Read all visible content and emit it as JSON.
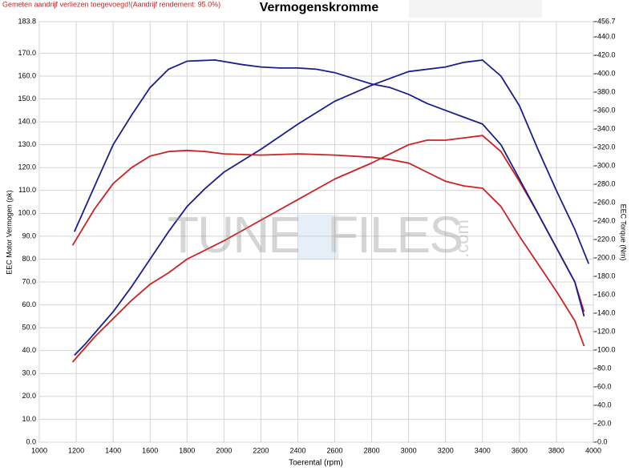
{
  "chart_data": {
    "type": "line",
    "title": "Vermogenskromme",
    "note": "Gemeten aandrijf verliezen toegevoegd!(Aandrijf rendement: 95.0%)",
    "x_label": "Toerental (rpm)",
    "y_label": "EEC Motor Vermogen (pk)",
    "y2_label": "EEC Torque (Nm)",
    "watermark": {
      "left": "TUNE",
      "right": "FILES",
      "suffix": ".com"
    },
    "grid": true,
    "xlim": [
      1000,
      4000
    ],
    "xticks": [
      1000,
      1200,
      1400,
      1600,
      1800,
      2000,
      2200,
      2400,
      2600,
      2800,
      3000,
      3200,
      3400,
      3600,
      3800,
      4000
    ],
    "ylim": [
      0,
      183.8
    ],
    "yticks": [
      {
        "value": 0,
        "label": "0.0"
      },
      {
        "value": 10,
        "label": "10.0"
      },
      {
        "value": 20,
        "label": "20.0"
      },
      {
        "value": 30,
        "label": "30.0"
      },
      {
        "value": 40,
        "label": "40.0"
      },
      {
        "value": 50,
        "label": "50.0"
      },
      {
        "value": 60,
        "label": "60.0"
      },
      {
        "value": 70,
        "label": "70.0"
      },
      {
        "value": 80,
        "label": "80.0"
      },
      {
        "value": 90,
        "label": "90.0"
      },
      {
        "value": 100,
        "label": "100.0"
      },
      {
        "value": 110,
        "label": "110.0"
      },
      {
        "value": 120,
        "label": "120.0"
      },
      {
        "value": 130,
        "label": "130.0"
      },
      {
        "value": 140,
        "label": "140.0"
      },
      {
        "value": 150,
        "label": "150.0"
      },
      {
        "value": 160,
        "label": "160.0"
      },
      {
        "value": 170,
        "label": "170.0"
      },
      183.8
    ],
    "y2lim": [
      0,
      456.7
    ],
    "y2ticks": [
      {
        "value": 0,
        "label": "-0.0"
      },
      {
        "value": 20,
        "label": "-20.0"
      },
      {
        "value": 40,
        "label": "-40.0"
      },
      {
        "value": 60,
        "label": "-60.0"
      },
      {
        "value": 80,
        "label": "-80.0"
      },
      {
        "value": 100,
        "label": "-100.0"
      },
      {
        "value": 120,
        "label": "-120.0"
      },
      {
        "value": 140,
        "label": "-140.0"
      },
      {
        "value": 160,
        "label": "-160.0"
      },
      {
        "value": 180,
        "label": "-180.0"
      },
      {
        "value": 200,
        "label": "-200.0"
      },
      {
        "value": 220,
        "label": "-220.0"
      },
      {
        "value": 240,
        "label": "-240.0"
      },
      {
        "value": 260,
        "label": "-260.0"
      },
      {
        "value": 280,
        "label": "-280.0"
      },
      {
        "value": 300,
        "label": "-300.0"
      },
      {
        "value": 320,
        "label": "-320.0"
      },
      {
        "value": 340,
        "label": "-340.0"
      },
      {
        "value": 360,
        "label": "-360.0"
      },
      {
        "value": 380,
        "label": "-380.0"
      },
      {
        "value": 400,
        "label": "-400.0"
      },
      {
        "value": 420,
        "label": "-420.0"
      },
      {
        "value": 440,
        "label": "-440.0"
      },
      {
        "value": 456.7,
        "label": "-456.7"
      }
    ],
    "series": [
      {
        "color": "#1b1f8a",
        "x": [
          1190,
          1250,
          1400,
          1500,
          1600,
          1700,
          1800,
          1900,
          2000,
          2200,
          2400,
          2600,
          2800,
          2900,
          3000,
          3200,
          3300,
          3400,
          3500,
          3600,
          3700,
          3800,
          3900,
          3975
        ],
        "values": [
          38,
          43,
          57,
          68,
          80,
          92,
          103,
          111,
          118,
          128,
          139,
          149,
          156,
          159,
          162,
          164,
          166,
          167,
          160,
          147,
          128,
          110,
          93,
          78
        ]
      },
      {
        "color": "#cc2222",
        "x": [
          1180,
          1300,
          1400,
          1500,
          1600,
          1700,
          1800,
          2000,
          2200,
          2400,
          2600,
          2800,
          2900,
          3000,
          3100,
          3200,
          3300,
          3400,
          3500,
          3600,
          3700,
          3800,
          3900,
          3950
        ],
        "values": [
          35,
          46,
          54,
          62,
          69,
          74,
          80,
          88,
          97,
          106,
          115,
          122,
          126,
          130,
          132,
          132,
          133,
          134,
          127,
          114,
          100,
          85,
          70,
          57
        ]
      },
      {
        "color": "#1b1f8a",
        "axis": "y2",
        "x": [
          1190,
          1300,
          1400,
          1500,
          1600,
          1700,
          1800,
          1950,
          2100,
          2200,
          2300,
          2400,
          2500,
          2600,
          2700,
          2800,
          2900,
          3000,
          3100,
          3200,
          3300,
          3400,
          3500,
          3600,
          3700,
          3800,
          3900,
          3950
        ],
        "values": [
          228.6,
          278.3,
          323.0,
          355.3,
          385.1,
          405.0,
          413.7,
          415.0,
          410.0,
          407.5,
          406.3,
          406.3,
          405.0,
          401.3,
          395.1,
          388.9,
          385.1,
          377.7,
          367.8,
          360.3,
          352.8,
          345.4,
          323.0,
          285.8,
          248.5,
          211.2,
          173.9,
          136.7
        ]
      },
      {
        "color": "#cc2222",
        "axis": "y2",
        "x": [
          1180,
          1300,
          1400,
          1500,
          1600,
          1700,
          1800,
          1900,
          2000,
          2200,
          2400,
          2600,
          2800,
          2900,
          3000,
          3100,
          3200,
          3300,
          3400,
          3500,
          3600,
          3700,
          3800,
          3900,
          3950
        ],
        "values": [
          213.7,
          253.5,
          280.8,
          298.2,
          310.6,
          315.6,
          316.8,
          315.6,
          313.1,
          311.8,
          313.1,
          311.8,
          309.4,
          306.9,
          303.1,
          293.2,
          283.3,
          278.3,
          275.8,
          255.9,
          223.6,
          193.8,
          164.0,
          131.7,
          104.4
        ]
      }
    ]
  }
}
